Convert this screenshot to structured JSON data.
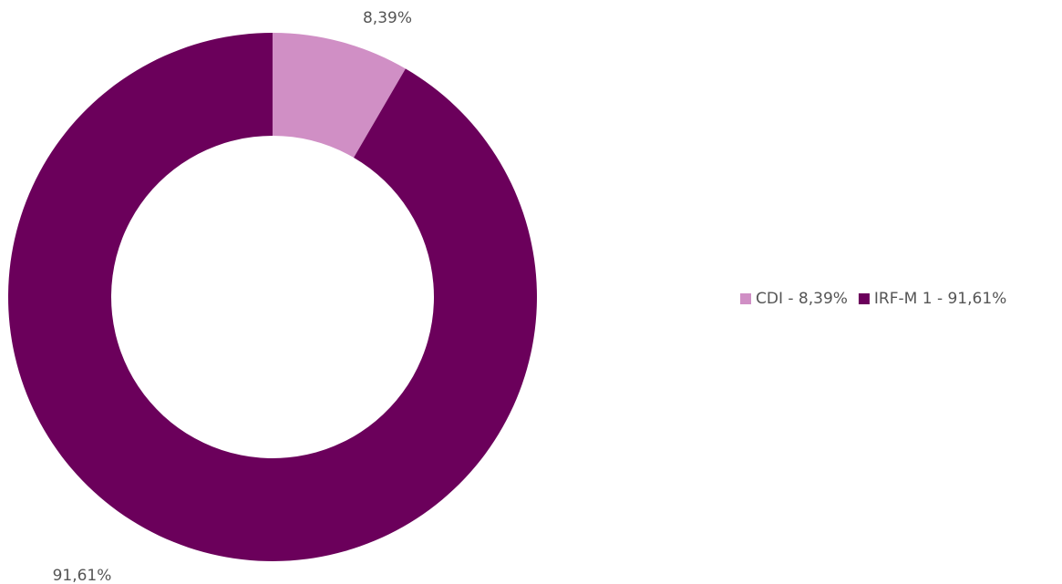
{
  "chart_data": {
    "type": "donut",
    "categories": [
      "CDI - 8,39%",
      "IRF-M 1 - 91,61%"
    ],
    "values": [
      8.39,
      91.61
    ],
    "value_labels": [
      "8,39%",
      "91,61%"
    ],
    "colors": [
      "#d08fc5",
      "#6b005b"
    ],
    "legend": "right"
  }
}
